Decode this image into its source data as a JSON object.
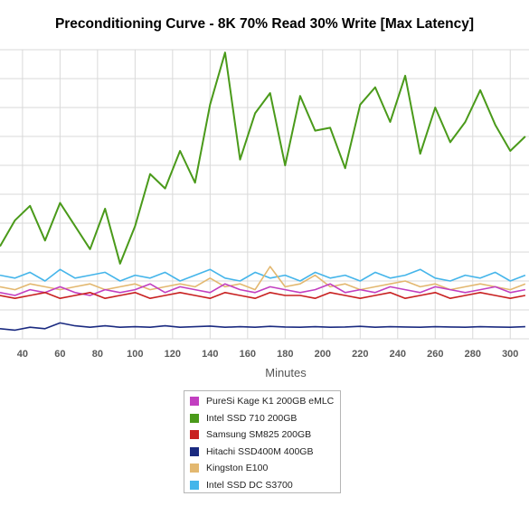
{
  "colors": {
    "background": "#ffffff",
    "grid": "#d9d9d9",
    "tick_label": "#5a5a5a"
  },
  "chart_data": {
    "type": "line",
    "title": "Preconditioning Curve - 8K 70% Read 30% Write [Max Latency]",
    "xlabel": "Minutes",
    "ylabel": "",
    "x_ticks": [
      40,
      60,
      80,
      100,
      120,
      140,
      160,
      180,
      200,
      220,
      240,
      260,
      280,
      300
    ],
    "xlim": [
      28,
      310
    ],
    "ylim": [
      0,
      10
    ],
    "grid": true,
    "legend_position": "bottom-center",
    "x": [
      28,
      36,
      44,
      52,
      60,
      68,
      76,
      84,
      92,
      100,
      108,
      116,
      124,
      132,
      140,
      148,
      156,
      164,
      172,
      180,
      188,
      196,
      204,
      212,
      220,
      228,
      236,
      244,
      252,
      260,
      268,
      276,
      284,
      292,
      300,
      308
    ],
    "series": [
      {
        "name": "PureSi Kage K1 200GB eMLC",
        "color": "#c23fc0",
        "values": [
          1.6,
          1.5,
          1.7,
          1.6,
          1.8,
          1.6,
          1.5,
          1.7,
          1.6,
          1.7,
          1.9,
          1.6,
          1.8,
          1.7,
          1.6,
          1.9,
          1.7,
          1.6,
          1.8,
          1.7,
          1.6,
          1.7,
          1.9,
          1.6,
          1.7,
          1.6,
          1.8,
          1.7,
          1.6,
          1.8,
          1.7,
          1.6,
          1.7,
          1.8,
          1.6,
          1.7
        ]
      },
      {
        "name": "Intel SSD 710 200GB",
        "color": "#4a9a1a",
        "values": [
          3.2,
          4.1,
          4.6,
          3.4,
          4.7,
          3.9,
          3.1,
          4.5,
          2.6,
          3.9,
          5.7,
          5.2,
          6.5,
          5.4,
          8.1,
          9.9,
          6.2,
          7.8,
          8.5,
          6.0,
          8.4,
          7.2,
          7.3,
          5.9,
          8.1,
          8.7,
          7.5,
          9.1,
          6.4,
          8.0,
          6.8,
          7.5,
          8.6,
          7.4,
          6.5,
          7.0
        ]
      },
      {
        "name": "Samsung SM825 200GB",
        "color": "#c82020",
        "values": [
          1.5,
          1.4,
          1.5,
          1.6,
          1.4,
          1.5,
          1.6,
          1.4,
          1.5,
          1.6,
          1.4,
          1.5,
          1.6,
          1.5,
          1.4,
          1.6,
          1.5,
          1.4,
          1.6,
          1.5,
          1.5,
          1.4,
          1.6,
          1.5,
          1.4,
          1.5,
          1.6,
          1.4,
          1.5,
          1.6,
          1.4,
          1.5,
          1.6,
          1.5,
          1.4,
          1.5
        ]
      },
      {
        "name": "Hitachi SSD400M 400GB",
        "color": "#1a2a80",
        "values": [
          0.35,
          0.3,
          0.4,
          0.35,
          0.55,
          0.45,
          0.4,
          0.45,
          0.4,
          0.42,
          0.4,
          0.45,
          0.4,
          0.42,
          0.44,
          0.4,
          0.42,
          0.4,
          0.43,
          0.41,
          0.4,
          0.42,
          0.4,
          0.41,
          0.43,
          0.4,
          0.42,
          0.41,
          0.4,
          0.42,
          0.41,
          0.4,
          0.42,
          0.41,
          0.4,
          0.42
        ]
      },
      {
        "name": "Kingston E100",
        "color": "#e3b870",
        "values": [
          1.8,
          1.7,
          1.9,
          1.8,
          1.7,
          1.8,
          1.9,
          1.7,
          1.8,
          1.9,
          1.7,
          1.8,
          1.9,
          1.8,
          2.1,
          1.8,
          1.9,
          1.7,
          2.5,
          1.8,
          1.9,
          2.2,
          1.8,
          1.9,
          1.7,
          1.8,
          1.9,
          2.0,
          1.8,
          1.9,
          1.7,
          1.8,
          1.9,
          1.8,
          1.7,
          1.9
        ]
      },
      {
        "name": "Intel SSD DC S3700",
        "color": "#45b5ea",
        "values": [
          2.2,
          2.1,
          2.3,
          2.0,
          2.4,
          2.1,
          2.2,
          2.3,
          2.0,
          2.2,
          2.1,
          2.3,
          2.0,
          2.2,
          2.4,
          2.1,
          2.0,
          2.3,
          2.1,
          2.2,
          2.0,
          2.3,
          2.1,
          2.2,
          2.0,
          2.3,
          2.1,
          2.2,
          2.4,
          2.1,
          2.0,
          2.2,
          2.1,
          2.3,
          2.0,
          2.2
        ]
      }
    ]
  }
}
